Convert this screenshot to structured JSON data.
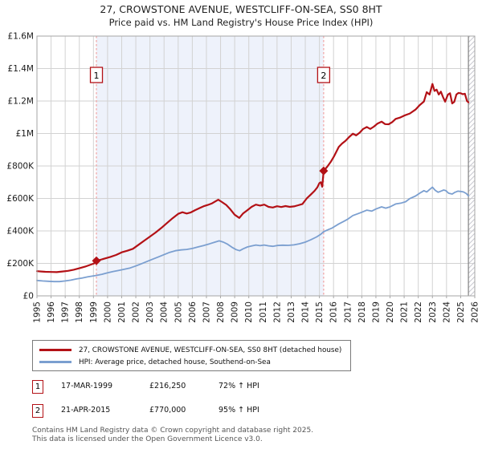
{
  "title": "27, CROWSTONE AVENUE, WESTCLIFF-ON-SEA, SS0 8HT",
  "subtitle": "Price paid vs. HM Land Registry's House Price Index (HPI)",
  "chart_data": {
    "type": "line",
    "xlim": [
      1995,
      2026
    ],
    "ylim": [
      0,
      1600000
    ],
    "x_ticks": [
      1995,
      1996,
      1997,
      1998,
      1999,
      2000,
      2001,
      2002,
      2003,
      2004,
      2005,
      2006,
      2007,
      2008,
      2009,
      2010,
      2011,
      2012,
      2013,
      2014,
      2015,
      2016,
      2017,
      2018,
      2019,
      2020,
      2021,
      2022,
      2023,
      2024,
      2025,
      2026
    ],
    "y_ticks": [
      {
        "v": 0,
        "label": "£0"
      },
      {
        "v": 200000,
        "label": "£200K"
      },
      {
        "v": 400000,
        "label": "£400K"
      },
      {
        "v": 600000,
        "label": "£600K"
      },
      {
        "v": 800000,
        "label": "£800K"
      },
      {
        "v": 1000000,
        "label": "£1M"
      },
      {
        "v": 1200000,
        "label": "£1.2M"
      },
      {
        "v": 1400000,
        "label": "£1.4M"
      },
      {
        "v": 1600000,
        "label": "£1.6M"
      }
    ],
    "grid": true,
    "legend_position": "bottom",
    "shaded_region": [
      1999.21,
      2015.3
    ],
    "hatch_region": [
      2025.55,
      2026
    ],
    "sale_markers": [
      {
        "n": "1",
        "x": 1999.21,
        "y": 216250
      },
      {
        "n": "2",
        "x": 2015.3,
        "y": 770000
      }
    ],
    "colors": {
      "shade": "#eef2fb",
      "grid": "#d2d2d2",
      "border": "#a6a6a6",
      "sale_dashed": "#f0a0a0",
      "marker": "#b31116",
      "hatch_line": "#c8c8d0",
      "hatch_edge": "#808080"
    },
    "series": [
      {
        "name": "27, CROWSTONE AVENUE, WESTCLIFF-ON-SEA, SS0 8HT (detached house)",
        "color": "#b31116",
        "width": 2.2,
        "points": [
          [
            1995.0,
            152000
          ],
          [
            1995.3,
            150000
          ],
          [
            1995.6,
            148000
          ],
          [
            1996.0,
            147000
          ],
          [
            1996.4,
            146000
          ],
          [
            1996.8,
            150000
          ],
          [
            1997.2,
            154000
          ],
          [
            1997.6,
            161000
          ],
          [
            1998.0,
            170000
          ],
          [
            1998.4,
            180000
          ],
          [
            1998.8,
            192000
          ],
          [
            1999.05,
            200000
          ],
          [
            1999.21,
            216250
          ],
          [
            1999.5,
            222000
          ],
          [
            1999.8,
            230000
          ],
          [
            2000.2,
            240000
          ],
          [
            2000.6,
            252000
          ],
          [
            2001.0,
            268000
          ],
          [
            2001.4,
            278000
          ],
          [
            2001.8,
            290000
          ],
          [
            2002.2,
            315000
          ],
          [
            2002.6,
            340000
          ],
          [
            2003.0,
            365000
          ],
          [
            2003.4,
            390000
          ],
          [
            2003.8,
            418000
          ],
          [
            2004.2,
            448000
          ],
          [
            2004.6,
            478000
          ],
          [
            2005.0,
            505000
          ],
          [
            2005.3,
            515000
          ],
          [
            2005.6,
            507000
          ],
          [
            2005.9,
            514000
          ],
          [
            2006.2,
            528000
          ],
          [
            2006.5,
            540000
          ],
          [
            2006.8,
            552000
          ],
          [
            2007.1,
            560000
          ],
          [
            2007.4,
            570000
          ],
          [
            2007.84,
            592000
          ],
          [
            2008.1,
            578000
          ],
          [
            2008.4,
            560000
          ],
          [
            2008.7,
            532000
          ],
          [
            2009.0,
            500000
          ],
          [
            2009.33,
            480000
          ],
          [
            2009.6,
            508000
          ],
          [
            2009.9,
            528000
          ],
          [
            2010.2,
            548000
          ],
          [
            2010.5,
            562000
          ],
          [
            2010.8,
            556000
          ],
          [
            2011.1,
            562000
          ],
          [
            2011.4,
            548000
          ],
          [
            2011.7,
            544000
          ],
          [
            2012.0,
            552000
          ],
          [
            2012.3,
            547000
          ],
          [
            2012.6,
            553000
          ],
          [
            2012.9,
            548000
          ],
          [
            2013.2,
            551000
          ],
          [
            2013.5,
            558000
          ],
          [
            2013.8,
            566000
          ],
          [
            2014.1,
            600000
          ],
          [
            2014.4,
            625000
          ],
          [
            2014.66,
            647000
          ],
          [
            2014.85,
            668000
          ],
          [
            2015.0,
            695000
          ],
          [
            2015.1,
            700000
          ],
          [
            2015.2,
            672000
          ],
          [
            2015.3,
            770000
          ],
          [
            2015.55,
            795000
          ],
          [
            2015.8,
            825000
          ],
          [
            2016.05,
            862000
          ],
          [
            2016.37,
            917000
          ],
          [
            2016.6,
            938000
          ],
          [
            2016.85,
            955000
          ],
          [
            2017.1,
            978000
          ],
          [
            2017.37,
            999000
          ],
          [
            2017.6,
            988000
          ],
          [
            2017.85,
            1005000
          ],
          [
            2018.1,
            1028000
          ],
          [
            2018.36,
            1040000
          ],
          [
            2018.6,
            1028000
          ],
          [
            2018.85,
            1042000
          ],
          [
            2019.1,
            1060000
          ],
          [
            2019.4,
            1073000
          ],
          [
            2019.65,
            1058000
          ],
          [
            2019.9,
            1057000
          ],
          [
            2020.15,
            1070000
          ],
          [
            2020.4,
            1090000
          ],
          [
            2020.7,
            1098000
          ],
          [
            2021.0,
            1110000
          ],
          [
            2021.4,
            1123000
          ],
          [
            2021.8,
            1147000
          ],
          [
            2022.1,
            1175000
          ],
          [
            2022.4,
            1197000
          ],
          [
            2022.6,
            1255000
          ],
          [
            2022.8,
            1240000
          ],
          [
            2023.0,
            1305000
          ],
          [
            2023.15,
            1262000
          ],
          [
            2023.3,
            1270000
          ],
          [
            2023.45,
            1240000
          ],
          [
            2023.6,
            1258000
          ],
          [
            2023.75,
            1225000
          ],
          [
            2023.9,
            1196000
          ],
          [
            2024.1,
            1240000
          ],
          [
            2024.25,
            1248000
          ],
          [
            2024.4,
            1185000
          ],
          [
            2024.55,
            1195000
          ],
          [
            2024.7,
            1240000
          ],
          [
            2024.85,
            1250000
          ],
          [
            2025.0,
            1248000
          ],
          [
            2025.15,
            1242000
          ],
          [
            2025.3,
            1245000
          ],
          [
            2025.45,
            1200000
          ],
          [
            2025.55,
            1192000
          ]
        ]
      },
      {
        "name": "HPI: Average price, detached house, Southend-on-Sea",
        "color": "#7b9fd0",
        "width": 1.8,
        "points": [
          [
            1995.0,
            95000
          ],
          [
            1995.4,
            92000
          ],
          [
            1995.8,
            90000
          ],
          [
            1996.2,
            88000
          ],
          [
            1996.6,
            88000
          ],
          [
            1997.0,
            92000
          ],
          [
            1997.4,
            97000
          ],
          [
            1997.8,
            104000
          ],
          [
            1998.2,
            110000
          ],
          [
            1998.6,
            117000
          ],
          [
            1999.0,
            123000
          ],
          [
            1999.21,
            126000
          ],
          [
            1999.6,
            133000
          ],
          [
            2000.0,
            142000
          ],
          [
            2000.4,
            150000
          ],
          [
            2000.8,
            157000
          ],
          [
            2001.2,
            164000
          ],
          [
            2001.6,
            172000
          ],
          [
            2002.0,
            184000
          ],
          [
            2002.4,
            198000
          ],
          [
            2002.8,
            212000
          ],
          [
            2003.2,
            226000
          ],
          [
            2003.6,
            240000
          ],
          [
            2004.0,
            254000
          ],
          [
            2004.4,
            268000
          ],
          [
            2004.8,
            278000
          ],
          [
            2005.2,
            283000
          ],
          [
            2005.6,
            286000
          ],
          [
            2006.0,
            292000
          ],
          [
            2006.4,
            301000
          ],
          [
            2006.8,
            310000
          ],
          [
            2007.2,
            320000
          ],
          [
            2007.6,
            331000
          ],
          [
            2007.9,
            339000
          ],
          [
            2008.2,
            331000
          ],
          [
            2008.5,
            318000
          ],
          [
            2008.8,
            300000
          ],
          [
            2009.1,
            285000
          ],
          [
            2009.35,
            278000
          ],
          [
            2009.6,
            290000
          ],
          [
            2009.9,
            301000
          ],
          [
            2010.2,
            307000
          ],
          [
            2010.5,
            313000
          ],
          [
            2010.8,
            309000
          ],
          [
            2011.1,
            313000
          ],
          [
            2011.4,
            308000
          ],
          [
            2011.7,
            305000
          ],
          [
            2012.0,
            310000
          ],
          [
            2012.4,
            312000
          ],
          [
            2012.8,
            311000
          ],
          [
            2013.2,
            314000
          ],
          [
            2013.6,
            321000
          ],
          [
            2014.0,
            331000
          ],
          [
            2014.4,
            346000
          ],
          [
            2014.8,
            363000
          ],
          [
            2015.1,
            380000
          ],
          [
            2015.3,
            395000
          ],
          [
            2015.6,
            407000
          ],
          [
            2015.9,
            418000
          ],
          [
            2016.37,
            443000
          ],
          [
            2016.7,
            458000
          ],
          [
            2017.0,
            472000
          ],
          [
            2017.37,
            495000
          ],
          [
            2017.7,
            505000
          ],
          [
            2018.0,
            515000
          ],
          [
            2018.36,
            528000
          ],
          [
            2018.7,
            522000
          ],
          [
            2019.0,
            535000
          ],
          [
            2019.4,
            548000
          ],
          [
            2019.7,
            540000
          ],
          [
            2020.0,
            548000
          ],
          [
            2020.4,
            566000
          ],
          [
            2020.8,
            572000
          ],
          [
            2021.1,
            580000
          ],
          [
            2021.4,
            599000
          ],
          [
            2021.8,
            615000
          ],
          [
            2022.1,
            632000
          ],
          [
            2022.4,
            648000
          ],
          [
            2022.6,
            640000
          ],
          [
            2022.8,
            655000
          ],
          [
            2023.0,
            669000
          ],
          [
            2023.2,
            650000
          ],
          [
            2023.4,
            638000
          ],
          [
            2023.6,
            645000
          ],
          [
            2023.8,
            652000
          ],
          [
            2023.95,
            648000
          ],
          [
            2024.15,
            632000
          ],
          [
            2024.4,
            627000
          ],
          [
            2024.6,
            638000
          ],
          [
            2024.8,
            645000
          ],
          [
            2025.0,
            643000
          ],
          [
            2025.2,
            640000
          ],
          [
            2025.4,
            630000
          ],
          [
            2025.55,
            616000
          ]
        ]
      }
    ]
  },
  "sales": [
    {
      "n": "1",
      "date": "17-MAR-1999",
      "price": "£216,250",
      "hpi": "72% ↑ HPI"
    },
    {
      "n": "2",
      "date": "21-APR-2015",
      "price": "£770,000",
      "hpi": "95% ↑ HPI"
    }
  ],
  "footer": {
    "line1": "Contains HM Land Registry data © Crown copyright and database right 2025.",
    "line2": "This data is licensed under the Open Government Licence v3.0."
  }
}
